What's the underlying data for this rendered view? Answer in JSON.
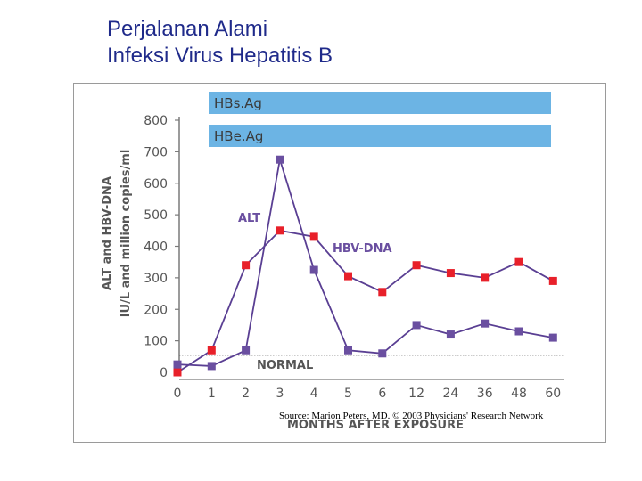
{
  "slide": {
    "title_line1": "Perjalanan Alami",
    "title_line2": "Infeksi Virus Hepatitis B"
  },
  "source": "Source: Marion Peters, MD. © 2003 Physicians' Research Network",
  "chart_data": {
    "type": "line",
    "title": "",
    "xlabel": "MONTHS AFTER EXPOSURE",
    "ylabel_line1": "ALT and HBV-DNA",
    "ylabel_line2": "IU/L and million copies/ml",
    "categories": [
      "0",
      "1",
      "2",
      "3",
      "4",
      "5",
      "6",
      "12",
      "24",
      "36",
      "48",
      "60"
    ],
    "yticks": [
      0,
      100,
      200,
      300,
      400,
      500,
      600,
      700,
      800
    ],
    "ylim": [
      0,
      800
    ],
    "series": [
      {
        "name": "HBV-DNA",
        "color": "#e8202a",
        "values": [
          0,
          70,
          340,
          450,
          430,
          305,
          255,
          340,
          315,
          300,
          350,
          290
        ]
      },
      {
        "name": "ALT",
        "color": "#6a4fa0",
        "values": [
          25,
          20,
          70,
          675,
          325,
          70,
          60,
          150,
          120,
          155,
          130,
          110
        ]
      }
    ],
    "normal_line": {
      "label": "NORMAL",
      "value": 60
    },
    "bars": [
      {
        "label": "HBs.Ag",
        "color": "#6cb4e4"
      },
      {
        "label": "HBe.Ag",
        "color": "#6cb4e4"
      }
    ],
    "label_color": "#555555",
    "series_label_color": "#6a4fa0"
  }
}
